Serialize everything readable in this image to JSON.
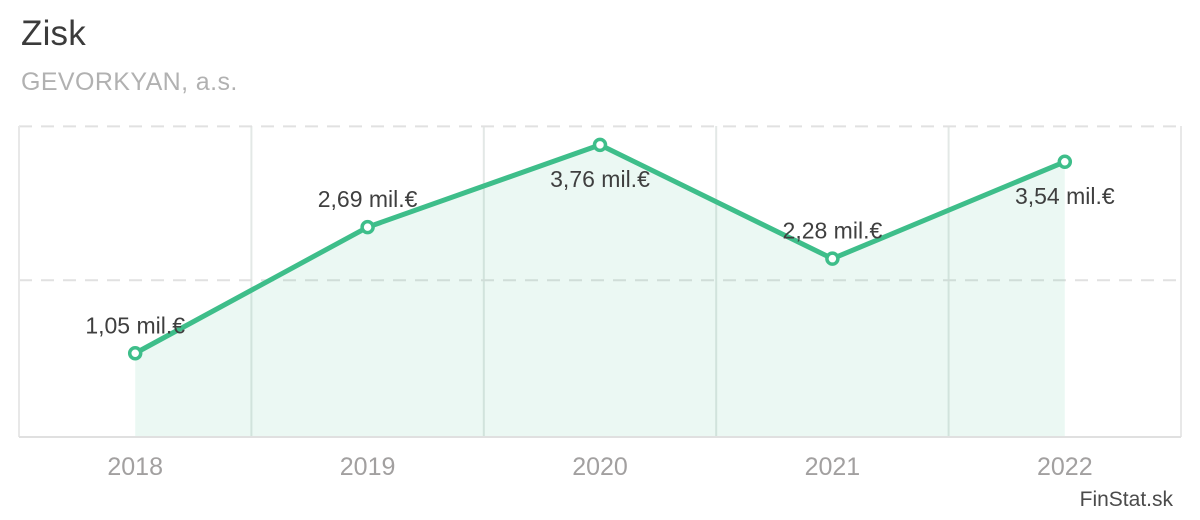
{
  "header": {
    "title": "Zisk",
    "subtitle": "GEVORKYAN, a.s."
  },
  "footer": {
    "watermark": "FinStat.sk"
  },
  "chart_data": {
    "type": "line",
    "title": "Zisk",
    "subtitle": "GEVORKYAN, a.s.",
    "categories": [
      "2018",
      "2019",
      "2020",
      "2021",
      "2022"
    ],
    "values": [
      1.05,
      2.69,
      3.76,
      2.28,
      3.54
    ],
    "point_labels": [
      "1,05 mil.€",
      "2,69 mil.€",
      "3,76 mil.€",
      "2,28 mil.€",
      "3,54 mil.€"
    ],
    "label_positions": [
      "above",
      "above",
      "below",
      "above",
      "below"
    ],
    "unit": "mil.€",
    "xlabel": "",
    "ylabel": "",
    "ylim": [
      0,
      4.07
    ],
    "gridline_values": [
      2,
      4
    ],
    "grid": "dashed-horizontal-with-vertical-band-separators",
    "legend": "none",
    "area_fill": true,
    "colors": {
      "line": "#3ebe8a",
      "marker_fill": "#ffffff",
      "area_fill": "rgba(62,190,138,0.10)",
      "h_grid": "#e1e1e1",
      "v_grid": "#e3e8e6",
      "border_side": "#e8e8e8",
      "border_bottom": "#e0e0e0",
      "axis_labels": "#a2a0a0",
      "point_label_text": "#3f3f3f"
    }
  }
}
